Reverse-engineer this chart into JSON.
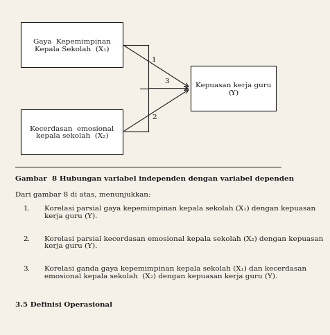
{
  "bg_color": "#f5f0e8",
  "diagram_bg": "#f5f0e8",
  "box1_text": "Gaya  Kepemimpinan\nKepala Sekolah  (X₁)",
  "box2_text": "Kecerdasan  emosional\nkepala sekolah  (X₂)",
  "box3_text": "Kepuasan kerja guru\n(Y)",
  "arrow1_label": "1",
  "arrow2_label": "2",
  "arrow3_label": "3",
  "caption_bold": "Gambar  8 Hubungan variabel independen dengan variabel dependen",
  "para_intro": "Dari gambar 8 di atas, menunjukkan:",
  "item1": "Korelasi parsial gaya kepemimpinan kepala sekolah (X₁) dengan kepuasan\nkerja guru (Y).",
  "item2": "Korelasi parsial kecerdasan emosional kepala sekolah (X₂) dengan kepuasan\nkerja guru (Y).",
  "item3": "Korelasi ganda gaya kepemimpinan kepala sekolah (X₁) dan kecerdasan\nemosional kepala sekolah  (X₂) dengan kepuasan kerja guru (Y).",
  "footer_bold": "3.5 Definisi Operasional",
  "text_color": "#1a1a1a",
  "box_edge_color": "#1a1a1a",
  "line_color": "#1a1a1a",
  "font_size_diagram": 7.5,
  "font_size_text": 7.5
}
